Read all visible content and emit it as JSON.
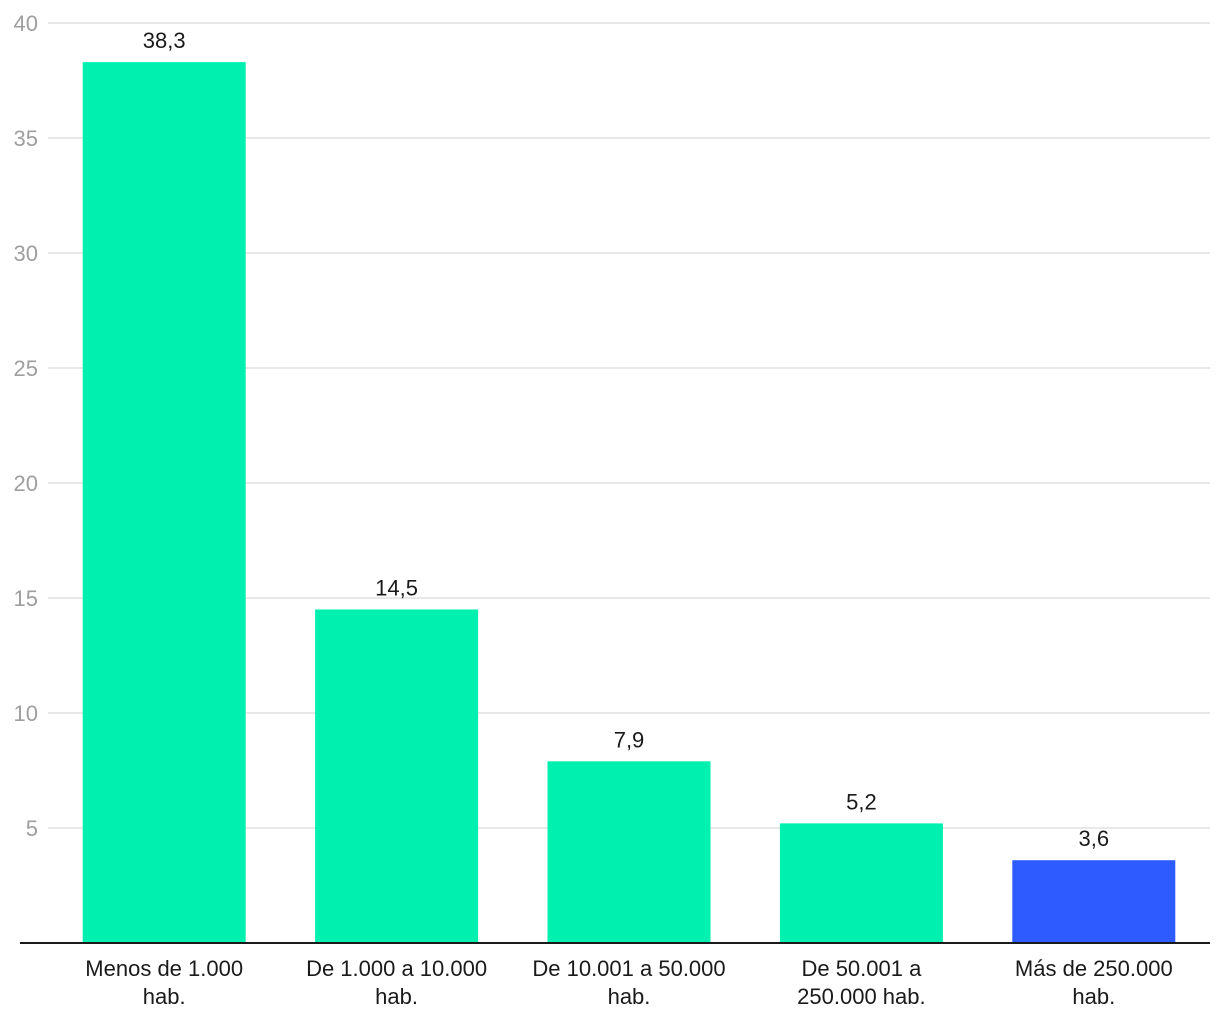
{
  "chart_data": {
    "type": "bar",
    "categories": [
      [
        "Menos de 1.000",
        "hab."
      ],
      [
        "De 1.000 a 10.000",
        "hab."
      ],
      [
        "De 10.001 a 50.000",
        "hab."
      ],
      [
        "De 50.001 a",
        "250.000 hab."
      ],
      [
        "Más de 250.000",
        "hab."
      ]
    ],
    "values": [
      38.3,
      14.5,
      7.9,
      5.2,
      3.6
    ],
    "value_labels": [
      "38,3",
      "14,5",
      "7,9",
      "5,2",
      "3,6"
    ],
    "bar_colors": [
      "#00f0b0",
      "#00f0b0",
      "#00f0b0",
      "#00f0b0",
      "#2e5bff"
    ],
    "ylim": [
      0,
      40
    ],
    "yticks": [
      5,
      10,
      15,
      20,
      25,
      30,
      35,
      40
    ],
    "ytick_labels": [
      "5",
      "10",
      "15",
      "20",
      "25",
      "30",
      "35",
      "40"
    ],
    "grid": true,
    "title": "",
    "xlabel": "",
    "ylabel": ""
  }
}
